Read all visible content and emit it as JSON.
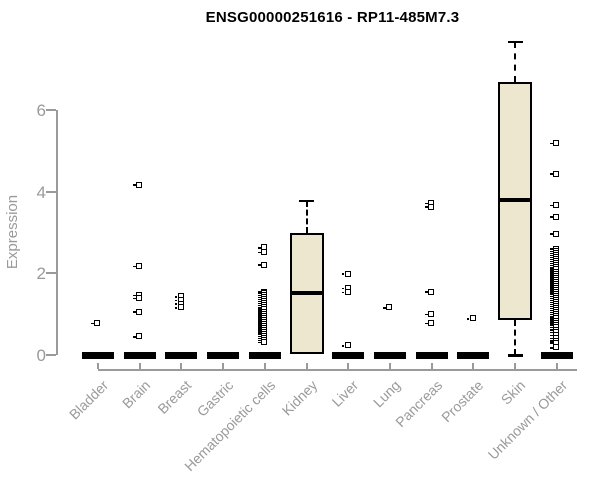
{
  "title": "ENSG00000251616 - RP11-485M7.3",
  "y_axis": {
    "label": "Expression",
    "tick_labels": [
      "0",
      "2",
      "4",
      "6"
    ]
  },
  "colors": {
    "box_fill": "#ECE7CE",
    "box_border": "#000000",
    "axis": "#9a9a9a",
    "axis_text": "#9a9a9a",
    "title_text": "#000000",
    "point": "#000000",
    "background": "#ffffff"
  },
  "chart_data": {
    "type": "boxplot",
    "title": "ENSG00000251616 - RP11-485M7.3",
    "xlabel": "",
    "ylabel": "Expression",
    "ylim": [
      0,
      7.7
    ],
    "yticks": [
      0,
      2,
      4,
      6
    ],
    "grid": false,
    "legend": "none",
    "categories": [
      "Bladder",
      "Brain",
      "Breast",
      "Gastric",
      "Hematopoietic cells",
      "Kidney",
      "Liver",
      "Lung",
      "Pancreas",
      "Prostate",
      "Skin",
      "Unknown / Other"
    ],
    "series": [
      {
        "category": "Bladder",
        "floor_bar": true,
        "box": null,
        "points": [
          0.76
        ]
      },
      {
        "category": "Brain",
        "floor_bar": true,
        "box": null,
        "points": [
          4.16,
          2.16,
          1.45,
          1.38,
          1.05,
          0.44
        ]
      },
      {
        "category": "Breast",
        "floor_bar": true,
        "box": null,
        "points": [
          1.42,
          1.33,
          1.24,
          1.15
        ]
      },
      {
        "category": "Gastric",
        "floor_bar": true,
        "box": null,
        "points": []
      },
      {
        "category": "Hematopoietic cells",
        "floor_bar": true,
        "box": null,
        "points": [
          2.62,
          2.5,
          2.2,
          1.54,
          1.5,
          1.45,
          1.4,
          1.35,
          1.3,
          1.25,
          1.2,
          1.15,
          1.1,
          1.05,
          1.0,
          0.95,
          0.9,
          0.85,
          0.8,
          0.75,
          0.7,
          0.65,
          0.6,
          0.55,
          0.5,
          0.45,
          0.4,
          0.35,
          0.3
        ]
      },
      {
        "category": "Kidney",
        "floor_bar": false,
        "box": {
          "whisker_low": null,
          "q1": 0.02,
          "median": 1.53,
          "q3": 2.98,
          "whisker_high": 3.78
        },
        "points": []
      },
      {
        "category": "Liver",
        "floor_bar": true,
        "box": null,
        "points": [
          1.98,
          1.62,
          1.52,
          0.22
        ]
      },
      {
        "category": "Lung",
        "floor_bar": true,
        "box": null,
        "points": [
          1.15
        ]
      },
      {
        "category": "Pancreas",
        "floor_bar": true,
        "box": null,
        "points": [
          3.7,
          3.62,
          1.54,
          0.98,
          0.76
        ]
      },
      {
        "category": "Prostate",
        "floor_bar": true,
        "box": null,
        "points": [
          0.88
        ]
      },
      {
        "category": "Skin",
        "floor_bar": false,
        "box": {
          "whisker_low": 0.0,
          "q1": 0.86,
          "median": 3.8,
          "q3": 6.69,
          "whisker_high": 7.67
        },
        "points": []
      },
      {
        "category": "Unknown / Other",
        "floor_bar": true,
        "box": null,
        "points": [
          5.17,
          4.43,
          3.65,
          3.37,
          2.96,
          2.59,
          2.53,
          2.48,
          2.43,
          2.38,
          2.33,
          2.28,
          2.23,
          2.18,
          2.13,
          2.08,
          2.03,
          1.98,
          1.93,
          1.88,
          1.83,
          1.78,
          1.73,
          1.68,
          1.63,
          1.58,
          1.53,
          1.48,
          1.43,
          1.38,
          1.33,
          1.28,
          1.23,
          1.18,
          1.13,
          1.08,
          1.03,
          0.98,
          0.93,
          0.88,
          0.83,
          0.78,
          0.73,
          0.67,
          0.6,
          0.54,
          0.47,
          0.4,
          0.34,
          0.29,
          0.17
        ]
      }
    ]
  }
}
